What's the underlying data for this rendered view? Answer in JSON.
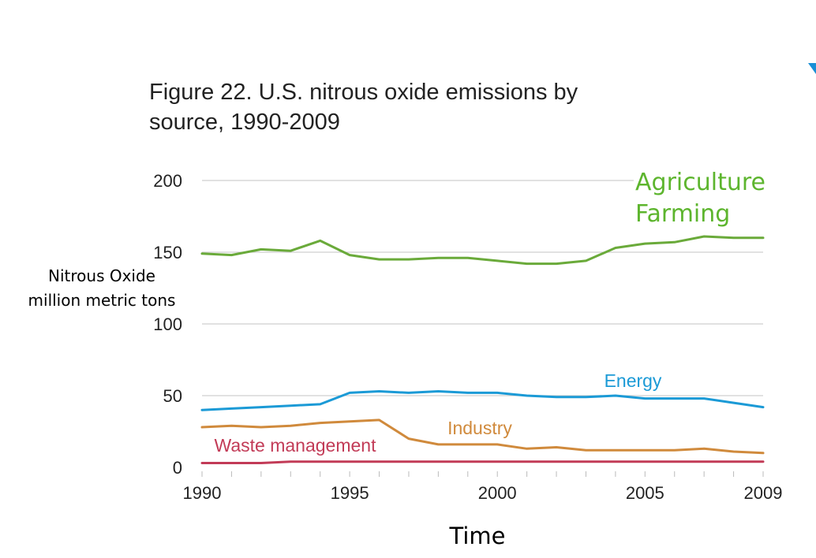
{
  "chart_data": {
    "type": "line",
    "title": "Figure 22. U.S. nitrous oxide emissions by source, 1990-2009",
    "title_lines": [
      "Figure 22. U.S. nitrous oxide emissions by",
      "source, 1990-2009"
    ],
    "xlabel": "Time",
    "ylabel_lines": [
      "Nitrous Oxide",
      "million metric tons"
    ],
    "x": [
      1990,
      1991,
      1992,
      1993,
      1994,
      1995,
      1996,
      1997,
      1998,
      1999,
      2000,
      2001,
      2002,
      2003,
      2004,
      2005,
      2006,
      2007,
      2008,
      2009
    ],
    "x_ticks": [
      "1990",
      "1995",
      "2000",
      "2005",
      "2009"
    ],
    "y_ticks": [
      "0",
      "50",
      "100",
      "150",
      "200"
    ],
    "xlim": [
      1990,
      2009
    ],
    "ylim": [
      0,
      200
    ],
    "grid": "horizontal",
    "series": [
      {
        "name": "Agriculture",
        "label_lines": [
          "Agriculture",
          "Farming"
        ],
        "color": "#6aaa3a",
        "label_color": "#5db52e",
        "values": [
          149,
          148,
          152,
          151,
          158,
          148,
          145,
          145,
          146,
          146,
          144,
          142,
          142,
          144,
          153,
          156,
          157,
          161,
          160,
          160
        ]
      },
      {
        "name": "Energy",
        "label_lines": [
          "Energy"
        ],
        "color": "#1b9ad6",
        "label_color": "#1b9ad6",
        "values": [
          40,
          41,
          42,
          43,
          44,
          52,
          53,
          52,
          53,
          52,
          52,
          50,
          49,
          49,
          50,
          48,
          48,
          48,
          45,
          42
        ]
      },
      {
        "name": "Industry",
        "label_lines": [
          "Industry"
        ],
        "color": "#d08a3c",
        "label_color": "#d08a3c",
        "values": [
          28,
          29,
          28,
          29,
          31,
          32,
          33,
          20,
          16,
          16,
          16,
          13,
          14,
          12,
          12,
          12,
          12,
          13,
          11,
          10
        ]
      },
      {
        "name": "Waste management",
        "label_lines": [
          "Waste management"
        ],
        "color": "#c23b57",
        "label_color": "#c23b57",
        "values": [
          3,
          3,
          3,
          4,
          4,
          4,
          4,
          4,
          4,
          4,
          4,
          4,
          4,
          4,
          4,
          4,
          4,
          4,
          4,
          4
        ]
      }
    ]
  },
  "decor": {
    "corner_mark_color": "#1a8fd6"
  }
}
